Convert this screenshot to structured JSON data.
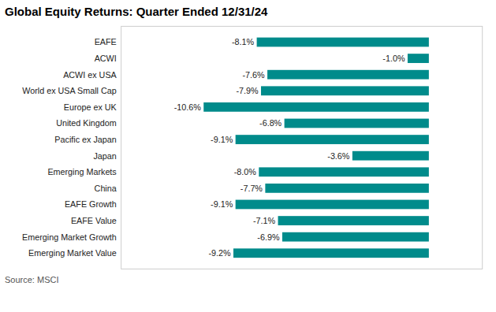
{
  "chart_data": {
    "type": "bar",
    "orientation": "horizontal",
    "title": "Global Equity Returns: Quarter Ended 12/31/24",
    "annotations": [
      "Source: MSCI"
    ],
    "categories": [
      "Emerging Market Value",
      "Emerging Market Growth",
      "EAFE Value",
      "EAFE Growth",
      "China",
      "Emerging Markets",
      "Japan",
      "Pacific ex Japan",
      "United Kingdom",
      "Europe ex UK",
      "World ex USA Small Cap",
      "ACWI ex USA",
      "ACWI",
      "EAFE"
    ],
    "values": [
      -9.2,
      -6.9,
      -7.1,
      -9.1,
      -7.7,
      -8.0,
      -3.6,
      -9.1,
      -6.8,
      -10.6,
      -7.9,
      -7.6,
      -1.0,
      -8.1
    ],
    "value_labels": [
      "-9.2%",
      "-6.9%",
      "-7.1%",
      "-9.1%",
      "-7.7%",
      "-8.0%",
      "-3.6%",
      "-9.1%",
      "-6.8%",
      "-10.6%",
      "-7.9%",
      "-7.6%",
      "-1.0%",
      "-8.1%"
    ],
    "data_labels": true,
    "color": "#008B8B",
    "xlim": [
      -14.5,
      2.5
    ],
    "tick_labels": "y",
    "grid": false
  }
}
